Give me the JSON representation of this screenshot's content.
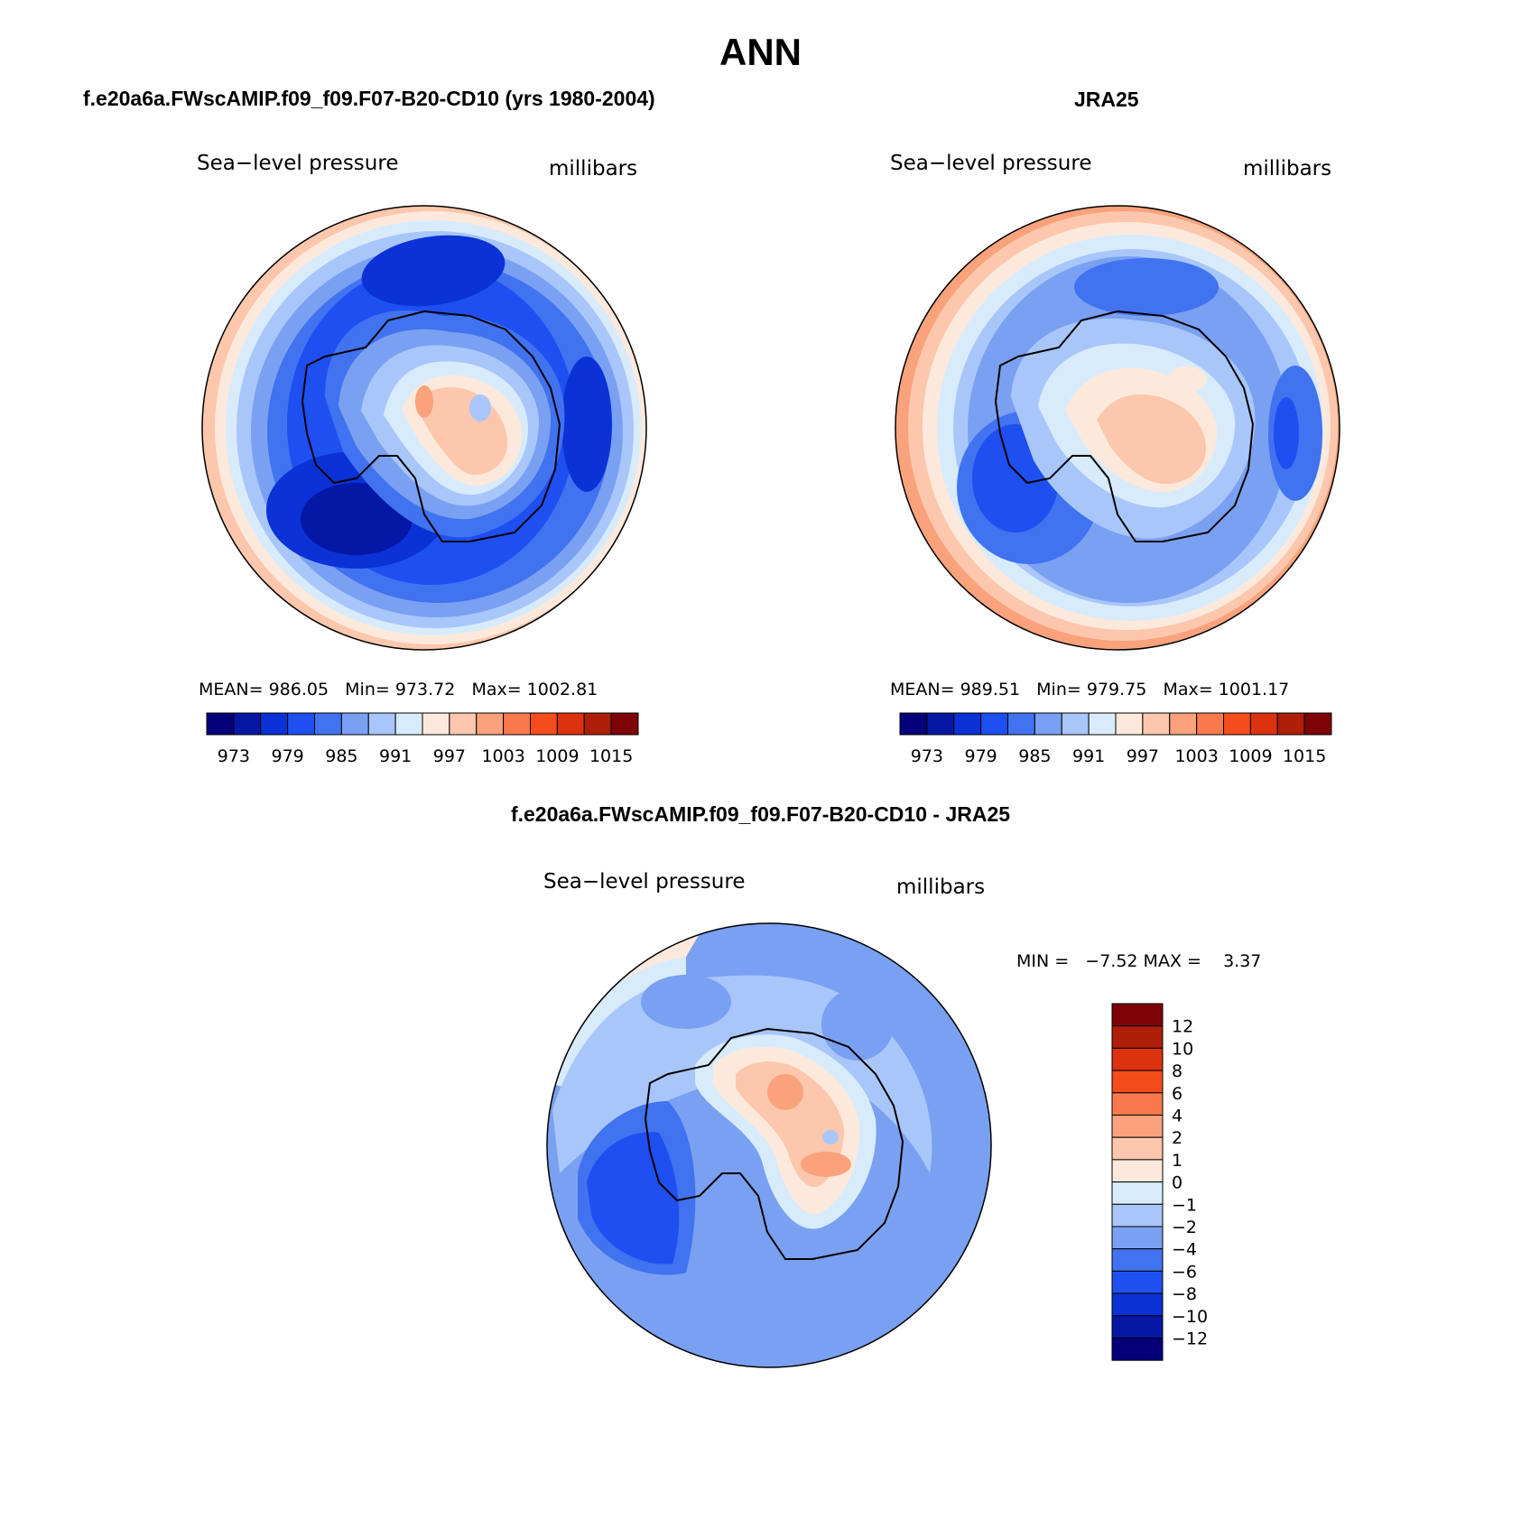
{
  "figure": {
    "title": "ANN",
    "model_title": "f.e20a6a.FWscAMIP.f09_f09.F07-B20-CD10 (yrs 1980-2004)",
    "obs_title": "JRA25",
    "diff_title": "f.e20a6a.FWscAMIP.f09_f09.F07-B20-CD10 - JRA25"
  },
  "panels": {
    "model": {
      "variable": "Sea−level pressure",
      "units": "millibars",
      "stats": "MEAN= 986.05   Min= 973.72   Max= 1002.81",
      "mean": 986.05,
      "min": 973.72,
      "max": 1002.81
    },
    "obs": {
      "variable": "Sea−level pressure",
      "units": "millibars",
      "stats": "MEAN= 989.51   Min= 979.75   Max= 1001.17",
      "mean": 989.51,
      "min": 979.75,
      "max": 1001.17
    },
    "diff": {
      "variable": "Sea−level pressure",
      "units": "millibars",
      "stats": "MIN =   −7.52 MAX =    3.37",
      "min": -7.52,
      "max": 3.37
    }
  },
  "colorbars": {
    "abs_colors": [
      "#04007a",
      "#0417a5",
      "#0a32d6",
      "#1e4ff0",
      "#4172f0",
      "#7aa0f2",
      "#a9c6fa",
      "#d8ebfb",
      "#fde9dc",
      "#fcc7ad",
      "#f9a27c",
      "#f87a4c",
      "#f44c1a",
      "#dc3210",
      "#ae1e08",
      "#7e0306"
    ],
    "abs_labels": [
      "973",
      "979",
      "985",
      "991",
      "997",
      "1003",
      "1009",
      "1015"
    ],
    "diff_colors": [
      "#7e0306",
      "#ae1e08",
      "#dc3210",
      "#f44c1a",
      "#f87a4c",
      "#f9a27c",
      "#fcc7ad",
      "#fde9dc",
      "#d8ebfb",
      "#a9c6fa",
      "#7aa0f2",
      "#4172f0",
      "#1e4ff0",
      "#0a32d6",
      "#0417a5",
      "#04007a"
    ],
    "diff_labels": [
      "12",
      "10",
      "8",
      "6",
      "4",
      "2",
      "1",
      "0",
      "−1",
      "−2",
      "−4",
      "−6",
      "−8",
      "−10",
      "−12"
    ]
  }
}
